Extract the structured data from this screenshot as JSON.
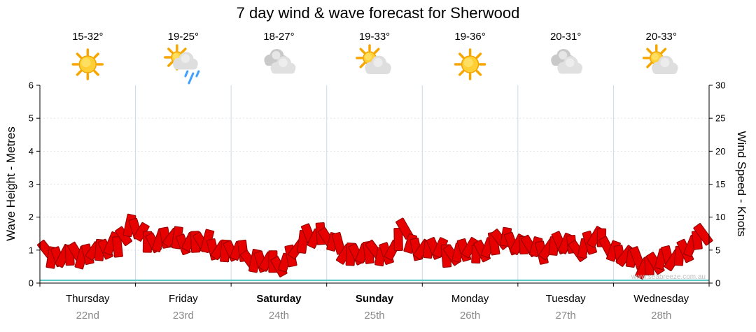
{
  "title": "7 day wind & wave forecast for Sherwood",
  "watermark": "www.seabreeze.com.au",
  "axes": {
    "left_label": "Wave Height - Metres",
    "right_label": "Wind Speed - Knots",
    "left_ticks": [
      0,
      1,
      2,
      3,
      4,
      5,
      6
    ],
    "right_ticks": [
      0,
      5,
      10,
      15,
      20,
      25,
      30
    ]
  },
  "days": [
    {
      "name": "Thursday",
      "date": "22nd",
      "temps": "15-32°",
      "icon": "sunny",
      "bold": false
    },
    {
      "name": "Friday",
      "date": "23rd",
      "temps": "19-25°",
      "icon": "sun-rain",
      "bold": false
    },
    {
      "name": "Saturday",
      "date": "24th",
      "temps": "18-27°",
      "icon": "cloudy",
      "bold": true
    },
    {
      "name": "Sunday",
      "date": "25th",
      "temps": "19-33°",
      "icon": "sun-cloud",
      "bold": true
    },
    {
      "name": "Monday",
      "date": "26th",
      "temps": "19-36°",
      "icon": "sunny",
      "bold": false
    },
    {
      "name": "Tuesday",
      "date": "27th",
      "temps": "20-31°",
      "icon": "cloudy",
      "bold": false
    },
    {
      "name": "Wednesday",
      "date": "28th",
      "temps": "20-33°",
      "icon": "sun-cloud",
      "bold": false
    }
  ],
  "colors": {
    "flag_fill": "#e60000",
    "flag_stroke": "#8f0000",
    "cyan_baseline": "#59c7c7",
    "day_grid_line": "#ccd9e6",
    "metre_grid_line": "#e3e3e3",
    "date_gray": "#8a8a8a",
    "watermark_gray": "#c0c0c0"
  },
  "chart_data": {
    "type": "area",
    "title": "7 day wind & wave forecast for Sherwood",
    "categories": [
      "Thursday",
      "Friday",
      "Saturday",
      "Sunday",
      "Monday",
      "Tuesday",
      "Wednesday"
    ],
    "points_per_day": 8,
    "series": [
      {
        "name": "Wave Height",
        "unit": "metres",
        "values": [
          0.9,
          0.85,
          0.8,
          0.9,
          1.0,
          0.95,
          1.2,
          1.75,
          1.45,
          1.3,
          1.35,
          1.25,
          1.3,
          1.2,
          1.15,
          1.0,
          0.9,
          0.8,
          0.65,
          0.55,
          0.7,
          1.0,
          1.35,
          1.55,
          1.2,
          1.0,
          0.9,
          0.85,
          0.9,
          1.0,
          1.55,
          1.1,
          1.0,
          0.95,
          0.9,
          0.95,
          1.0,
          1.1,
          1.25,
          1.3,
          1.15,
          1.0,
          1.1,
          1.2,
          1.05,
          1.1,
          1.35,
          1.2,
          0.9,
          0.7,
          0.55,
          0.6,
          0.75,
          0.9,
          1.1,
          1.35
        ]
      }
    ],
    "left_axis": {
      "label": "Wave Height - Metres",
      "range": [
        0,
        6
      ],
      "ticks": [
        0,
        1,
        2,
        3,
        4,
        5,
        6
      ]
    },
    "right_axis": {
      "label": "Wind Speed - Knots",
      "range": [
        0,
        30
      ],
      "ticks": [
        0,
        5,
        10,
        15,
        20,
        25,
        30
      ]
    },
    "grid": "day separators vertical, faint metre lines horizontal",
    "legend": "none"
  }
}
